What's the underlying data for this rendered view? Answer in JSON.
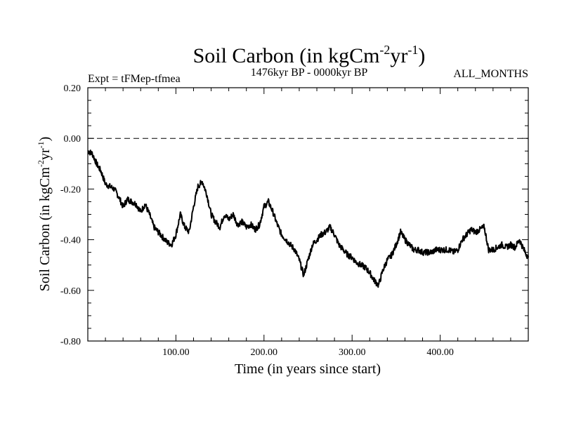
{
  "chart_data": {
    "type": "line",
    "title": "Soil Carbon (in kgCm",
    "title_units": {
      "exp1": "-2",
      "mid": "yr",
      "exp2": "-1",
      "close": ")"
    },
    "subtitle_left": "Expt = tFMep-tfmea",
    "subtitle_center": "1476kyr BP - 0000kyr BP",
    "subtitle_right": "ALL_MONTHS",
    "xlabel": "Time (in years since start)",
    "ylabel": "Soil Carbon (in kgCm",
    "ylabel_units": {
      "exp1": "-2",
      "mid": "yr",
      "exp2": "-1",
      "close": ")"
    },
    "xlim": [
      0,
      500
    ],
    "ylim": [
      -0.8,
      0.2
    ],
    "x_ticks": [
      100,
      200,
      300,
      400
    ],
    "x_tick_labels": [
      "100.00",
      "200.00",
      "300.00",
      "400.00"
    ],
    "y_ticks": [
      0.2,
      0.0,
      -0.2,
      -0.4,
      -0.6,
      -0.8
    ],
    "y_tick_labels": [
      "0.20",
      "0.00",
      "-0.20",
      "-0.40",
      "-0.60",
      "-0.80"
    ],
    "reference_line": {
      "y": 0.0,
      "style": "dashed"
    },
    "series": [
      {
        "name": "Soil Carbon",
        "color": "#000000",
        "noise": 0.012,
        "x": [
          0,
          5,
          10,
          15,
          20,
          25,
          30,
          35,
          40,
          45,
          50,
          55,
          60,
          65,
          70,
          75,
          80,
          85,
          90,
          95,
          100,
          105,
          110,
          115,
          120,
          125,
          130,
          135,
          140,
          145,
          150,
          155,
          160,
          165,
          170,
          175,
          180,
          185,
          190,
          195,
          200,
          205,
          210,
          215,
          220,
          225,
          230,
          235,
          240,
          245,
          250,
          255,
          260,
          265,
          270,
          275,
          280,
          285,
          290,
          295,
          300,
          305,
          310,
          315,
          320,
          325,
          330,
          335,
          340,
          345,
          350,
          355,
          360,
          365,
          370,
          375,
          380,
          385,
          390,
          395,
          400,
          405,
          410,
          415,
          420,
          425,
          430,
          435,
          440,
          445,
          450,
          455,
          460,
          465,
          470,
          475,
          480,
          485,
          490,
          495,
          500
        ],
        "values": [
          -0.05,
          -0.06,
          -0.1,
          -0.13,
          -0.18,
          -0.19,
          -0.2,
          -0.23,
          -0.27,
          -0.24,
          -0.25,
          -0.26,
          -0.29,
          -0.26,
          -0.3,
          -0.35,
          -0.37,
          -0.39,
          -0.41,
          -0.42,
          -0.38,
          -0.3,
          -0.35,
          -0.37,
          -0.27,
          -0.19,
          -0.17,
          -0.22,
          -0.3,
          -0.33,
          -0.35,
          -0.3,
          -0.32,
          -0.3,
          -0.34,
          -0.33,
          -0.35,
          -0.34,
          -0.36,
          -0.34,
          -0.27,
          -0.25,
          -0.29,
          -0.34,
          -0.38,
          -0.4,
          -0.42,
          -0.44,
          -0.48,
          -0.54,
          -0.48,
          -0.42,
          -0.4,
          -0.38,
          -0.37,
          -0.35,
          -0.38,
          -0.42,
          -0.44,
          -0.46,
          -0.47,
          -0.49,
          -0.5,
          -0.51,
          -0.53,
          -0.56,
          -0.58,
          -0.52,
          -0.48,
          -0.46,
          -0.42,
          -0.37,
          -0.4,
          -0.42,
          -0.44,
          -0.44,
          -0.45,
          -0.45,
          -0.45,
          -0.44,
          -0.44,
          -0.44,
          -0.44,
          -0.45,
          -0.44,
          -0.4,
          -0.38,
          -0.36,
          -0.37,
          -0.36,
          -0.35,
          -0.44,
          -0.44,
          -0.43,
          -0.42,
          -0.43,
          -0.42,
          -0.43,
          -0.4,
          -0.44,
          -0.47
        ]
      }
    ]
  }
}
